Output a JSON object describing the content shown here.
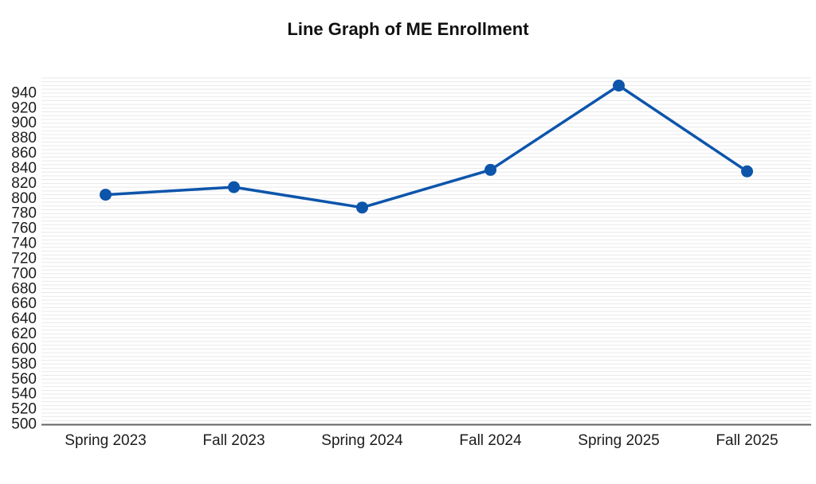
{
  "chart_data": {
    "type": "line",
    "title": "Line Graph of ME Enrollment",
    "categories": [
      "Spring 2023",
      "Fall 2023",
      "Spring 2024",
      "Fall 2024",
      "Spring 2025",
      "Fall 2025"
    ],
    "series": [
      {
        "name": "ME Enrollment",
        "values": [
          805,
          815,
          788,
          838,
          950,
          836
        ]
      }
    ],
    "xlabel": "",
    "ylabel": "",
    "ylim": [
      500,
      960
    ],
    "y_tick_min": 500,
    "y_tick_max": 940,
    "y_tick_step": 20,
    "y_minor_gridline_step": 5,
    "grid": true,
    "legend": "none",
    "line_color": "#0d55ab",
    "marker_color": "#0d55ab",
    "gridline_color": "#e9e9e9",
    "axis_line_color": "#636363",
    "text_color": "#1c1c1c",
    "background_color": "#ffffff"
  }
}
